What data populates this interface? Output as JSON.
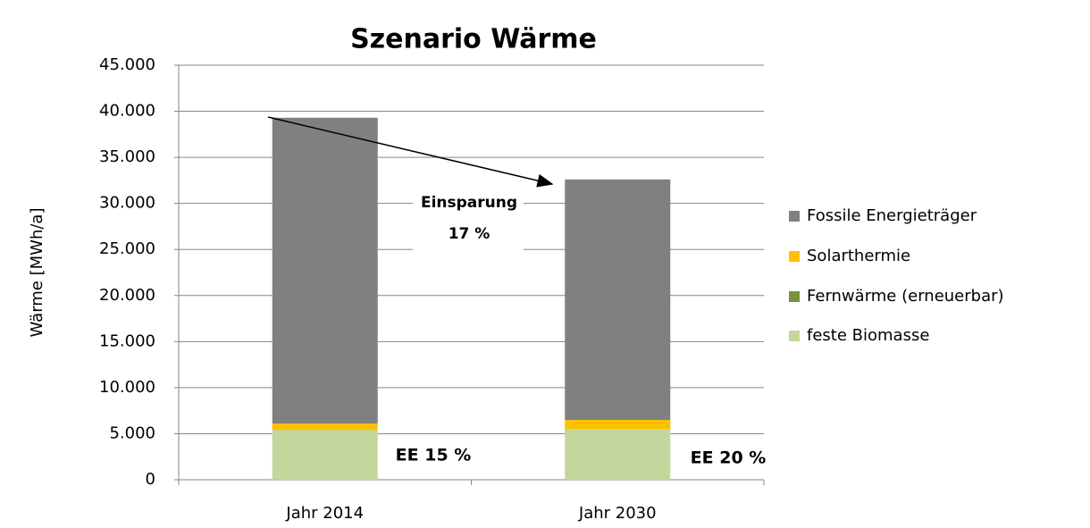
{
  "chart_data": {
    "type": "stacked_bar",
    "title": "Szenario Wärme",
    "y_label": "Wärme [MWh/a]",
    "categories": [
      "Jahr 2014",
      "Jahr 2030"
    ],
    "series": [
      {
        "name": "feste Biomasse",
        "color": "#c3d69b",
        "values": [
          5400,
          5500
        ]
      },
      {
        "name": "Fernwärme (erneuerbar)",
        "color": "#77933c",
        "values": [
          0,
          0
        ]
      },
      {
        "name": "Solarthermie",
        "color": "#ffc000",
        "values": [
          700,
          1000
        ]
      },
      {
        "name": "Fossile Energieträger",
        "color": "#808080",
        "values": [
          33200,
          26100
        ]
      }
    ],
    "ylim": [
      0,
      45000
    ],
    "yticks": [
      0,
      {
        "value": 5000,
        "label": "5.000"
      },
      {
        "value": 10000,
        "label": "10.000"
      },
      {
        "value": 15000,
        "label": "15.000"
      },
      {
        "value": 20000,
        "label": "20.000"
      },
      {
        "value": 25000,
        "label": "25.000"
      },
      {
        "value": 30000,
        "label": "30.000"
      },
      {
        "value": 35000,
        "label": "35.000"
      },
      {
        "value": 40000,
        "label": "40.000"
      },
      {
        "value": 45000,
        "label": "45.000"
      }
    ],
    "grid": true,
    "legend": "right",
    "annotations": [
      "Einsparung",
      "17 %",
      "EE 15 %",
      "EE 20 %"
    ]
  }
}
